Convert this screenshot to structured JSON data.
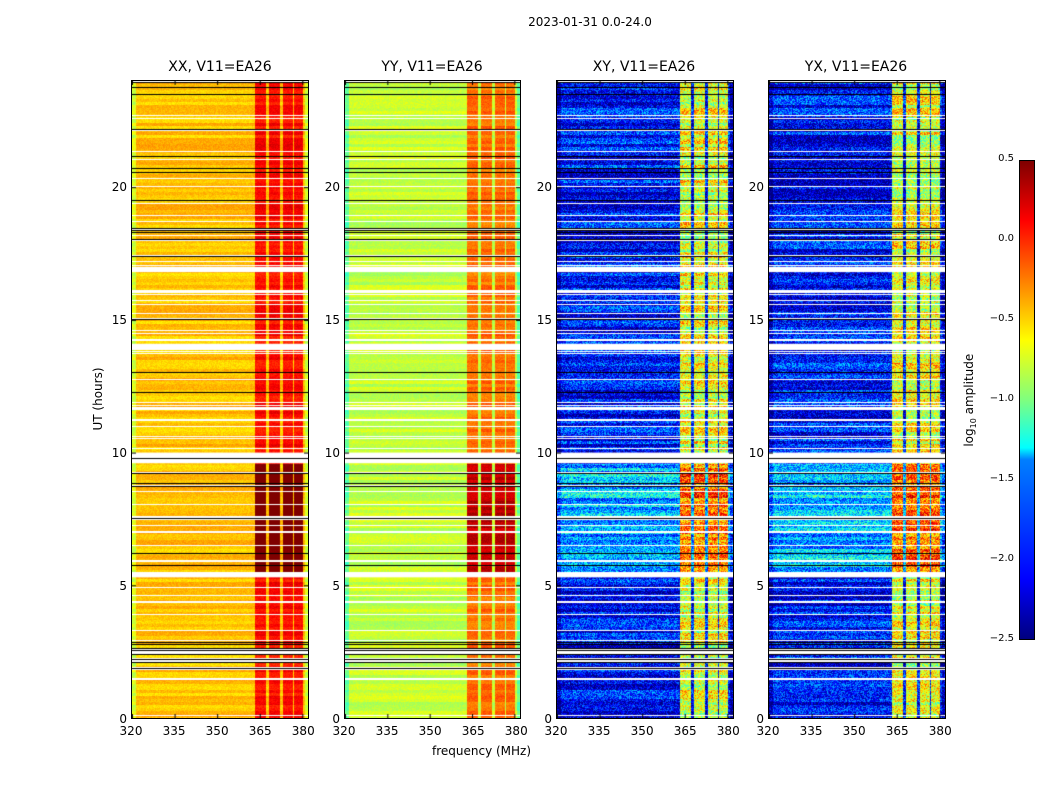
{
  "chart_data": {
    "type": "heatmap",
    "title": "2023-01-31 0.0-24.0",
    "ylabel": "UT (hours)",
    "xlabel": "frequency (MHz)",
    "panels": [
      {
        "title": "XX, V11=EA26",
        "polarization": "XX",
        "base_level": -0.45,
        "band_level": 0.1
      },
      {
        "title": "YY, V11=EA26",
        "polarization": "YY",
        "base_level": -0.8,
        "band_level": -0.2
      },
      {
        "title": "XY, V11=EA26",
        "polarization": "XY",
        "base_level": -2.1,
        "band_level": -0.7
      },
      {
        "title": "YX, V11=EA26",
        "polarization": "YX",
        "base_level": -2.1,
        "band_level": -0.7
      }
    ],
    "xlim": [
      320,
      382
    ],
    "ylim": [
      0,
      24
    ],
    "xticks": [
      "320",
      "335",
      "350",
      "365",
      "380"
    ],
    "yticks": [
      "0",
      "5",
      "10",
      "15",
      "20"
    ],
    "ytick_values": [
      0,
      5,
      10,
      15,
      20
    ],
    "xtick_values": [
      320,
      335,
      350,
      365,
      380
    ],
    "band_edges_mhz": [
      [
        363,
        367
      ],
      [
        368,
        372
      ],
      [
        373,
        376.5
      ],
      [
        377,
        380
      ]
    ],
    "flagged_gaps_hours": [
      [
        9.6,
        10.0
      ],
      [
        13.9,
        14.1
      ],
      [
        16.8,
        17.0
      ],
      [
        2.4,
        2.6
      ],
      [
        5.3,
        5.5
      ]
    ],
    "colorbar": {
      "label": "log10 amplitude",
      "range": [
        -2.5,
        0.5
      ],
      "ticks": [
        "0.5",
        "0.0",
        "−0.5",
        "−1.0",
        "−1.5",
        "−2.0",
        "−2.5"
      ],
      "colormap": "jet"
    }
  }
}
